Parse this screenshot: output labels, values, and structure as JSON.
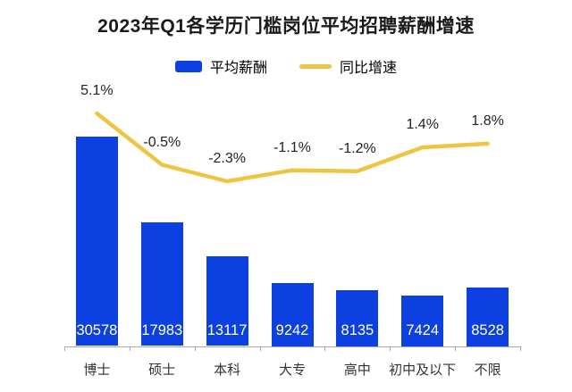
{
  "title": "2023年Q1各学历门槛岗位平均招聘薪酬增速",
  "legend": {
    "bar_label": "平均薪酬",
    "line_label": "同比增速"
  },
  "colors": {
    "bar": "#0C40E0",
    "line": "#F0C443",
    "bar_value_text": "#FFFFFF",
    "title_text": "#1A1A1A",
    "pct_label_text": "#222222",
    "category_text": "#333333",
    "axis": "#AAAAAA",
    "background": "#FFFFFF"
  },
  "chart_data": {
    "type": "combo",
    "categories": [
      "博士",
      "硕士",
      "本科",
      "大专",
      "高中",
      "初中及以下",
      "不限"
    ],
    "series": [
      {
        "name": "平均薪酬",
        "type": "bar",
        "values": [
          30578,
          17983,
          13117,
          9242,
          8135,
          7424,
          8528
        ],
        "value_labels": [
          "30578",
          "17983",
          "13117",
          "9242",
          "8135",
          "7424",
          "8528"
        ]
      },
      {
        "name": "同比增速",
        "type": "line",
        "values": [
          5.1,
          -0.5,
          -2.3,
          -1.1,
          -1.2,
          1.4,
          1.8
        ],
        "value_labels": [
          "5.1%",
          "-0.5%",
          "-2.3%",
          "-1.1%",
          "-1.2%",
          "1.4%",
          "1.8%"
        ]
      }
    ],
    "bar_axis_range": [
      0,
      32000
    ],
    "line_axis_range": [
      -3,
      6
    ],
    "grid": false,
    "legend_position": "top",
    "value_labels_shown": true
  }
}
